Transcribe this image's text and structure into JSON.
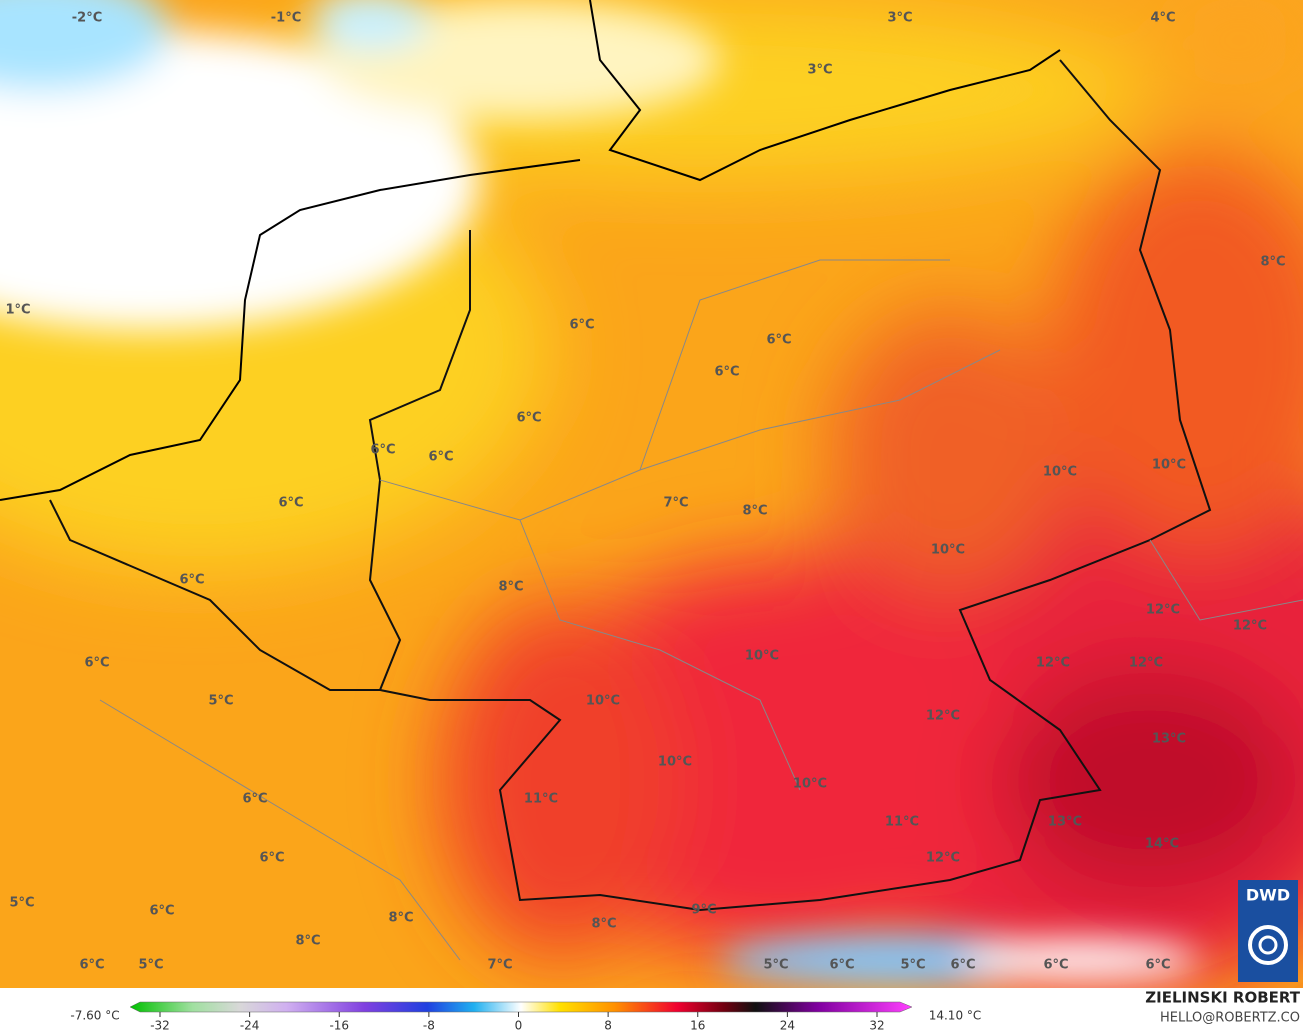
{
  "map": {
    "labels": [
      "-2°C",
      "-1°C",
      "3°C",
      "4°C",
      "3°C",
      "1°C",
      "8°C",
      "6°C",
      "6°C",
      "6°C",
      "6°C",
      "6°C",
      "6°C",
      "10°C",
      "10°C",
      "6°C",
      "7°C",
      "8°C",
      "10°C",
      "6°C",
      "8°C",
      "12°C",
      "12°C",
      "6°C",
      "10°C",
      "12°C",
      "12°C",
      "5°C",
      "10°C",
      "12°C",
      "13°C",
      "10°C",
      "10°C",
      "6°C",
      "11°C",
      "11°C",
      "13°C",
      "14°C",
      "6°C",
      "12°C",
      "5°C",
      "6°C",
      "8°C",
      "9°C",
      "8°C",
      "8°C",
      "6°C",
      "5°C",
      "7°C",
      "5°C",
      "6°C",
      "5°C",
      "6°C",
      "6°C",
      "6°C"
    ],
    "logo": "DWD"
  },
  "colorbar": {
    "min_label": "-7.60 °C",
    "max_label": "14.10 °C",
    "lim": [
      -32,
      32
    ],
    "ticks": [
      -32,
      -24,
      -16,
      -8,
      0,
      8,
      16,
      24,
      32
    ]
  },
  "credits": {
    "name": "ZIELINSKI ROBERT",
    "contact": "HELLO@ROBERTZ.CO"
  }
}
